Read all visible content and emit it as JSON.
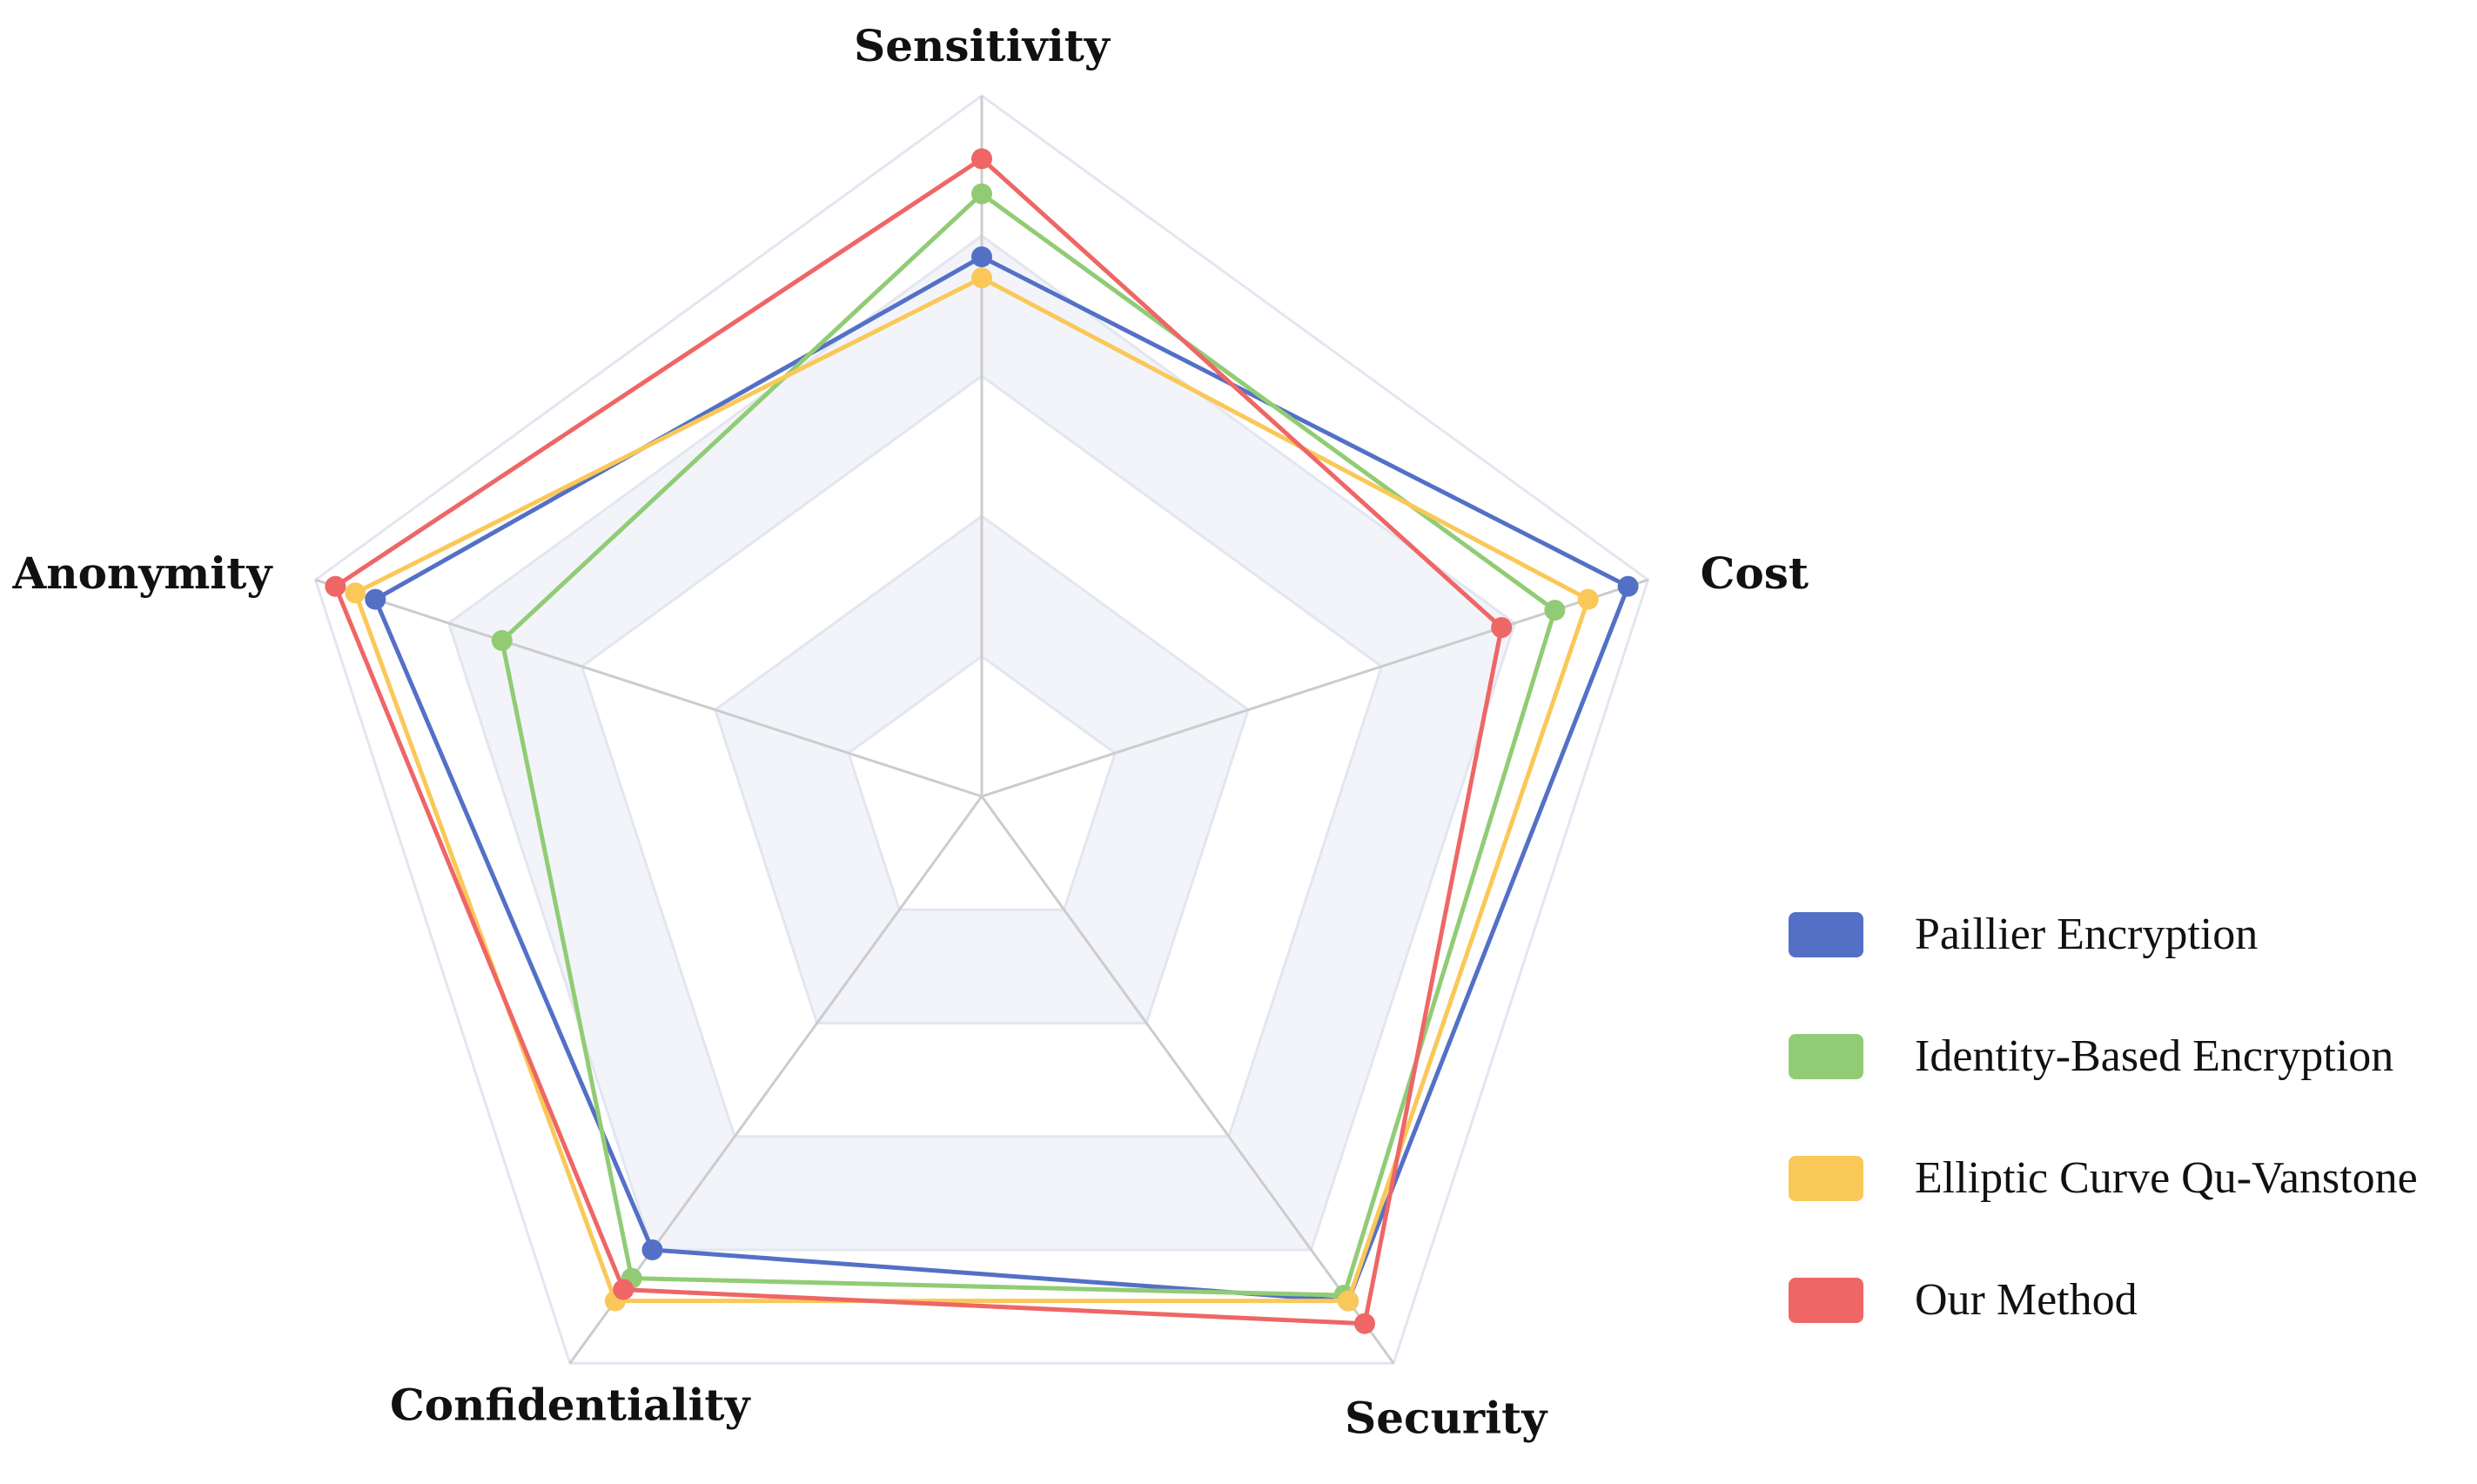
{
  "chart_data": {
    "type": "radar",
    "title": "",
    "axes": [
      "Sensitivity",
      "Cost",
      "Security",
      "Confidentiality",
      "Anonymity"
    ],
    "rlim": [
      0,
      100
    ],
    "grid": true,
    "legend_position": "right",
    "series": [
      {
        "name": "Paillier Encryption",
        "color": "#5470c6",
        "values": [
          77,
          97,
          89,
          80,
          91
        ]
      },
      {
        "name": "Identity-Based Encryption",
        "color": "#91cc75",
        "values": [
          86,
          86,
          88,
          85,
          72
        ]
      },
      {
        "name": "Elliptic Curve Qu-Vanstone",
        "color": "#fac858",
        "values": [
          74,
          91,
          89,
          89,
          94
        ]
      },
      {
        "name": "Our Method",
        "color": "#ee6666",
        "values": [
          91,
          78,
          93,
          87,
          97
        ]
      }
    ]
  }
}
